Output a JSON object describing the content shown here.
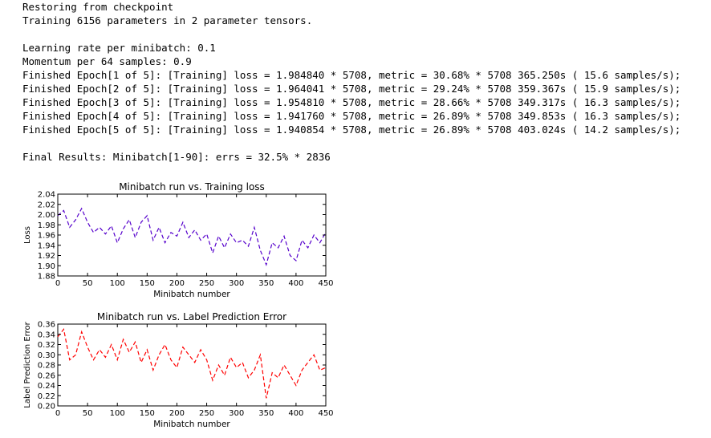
{
  "console": {
    "lines": [
      "Restoring from checkpoint",
      "Training 6156 parameters in 2 parameter tensors.",
      "",
      "Learning rate per minibatch: 0.1",
      "Momentum per 64 samples: 0.9",
      "Finished Epoch[1 of 5]: [Training] loss = 1.984840 * 5708, metric = 30.68% * 5708 365.250s ( 15.6 samples/s);",
      "Finished Epoch[2 of 5]: [Training] loss = 1.964041 * 5708, metric = 29.24% * 5708 359.367s ( 15.9 samples/s);",
      "Finished Epoch[3 of 5]: [Training] loss = 1.954810 * 5708, metric = 28.66% * 5708 349.317s ( 16.3 samples/s);",
      "Finished Epoch[4 of 5]: [Training] loss = 1.941760 * 5708, metric = 26.89% * 5708 349.853s ( 16.3 samples/s);",
      "Finished Epoch[5 of 5]: [Training] loss = 1.940854 * 5708, metric = 26.89% * 5708 403.024s ( 14.2 samples/s);",
      "",
      "Final Results: Minibatch[1-90]: errs = 32.5% * 2836"
    ]
  },
  "chart_data": [
    {
      "type": "line",
      "title": "Minibatch run vs. Training loss",
      "xlabel": "Minibatch number",
      "ylabel": "Loss",
      "xlim": [
        0,
        450
      ],
      "ylim": [
        1.88,
        2.04
      ],
      "xticks": [
        0,
        50,
        100,
        150,
        200,
        250,
        300,
        350,
        400,
        450
      ],
      "yticks": [
        1.88,
        1.9,
        1.92,
        1.94,
        1.96,
        1.98,
        2.0,
        2.02,
        2.04
      ],
      "ytick_labels": [
        "1.88",
        "1.90",
        "1.92",
        "1.94",
        "1.96",
        "1.98",
        "2.00",
        "2.02",
        "2.04"
      ],
      "color": "#5500cc",
      "line_style": "dashed",
      "grid": false,
      "series": [
        {
          "x": [
            0,
            10,
            20,
            30,
            40,
            50,
            60,
            70,
            80,
            90,
            100,
            110,
            120,
            130,
            140,
            150,
            160,
            170,
            180,
            190,
            200,
            210,
            220,
            230,
            240,
            250,
            260,
            270,
            280,
            290,
            300,
            310,
            320,
            330,
            340,
            350,
            360,
            370,
            380,
            390,
            400,
            410,
            420,
            430,
            440,
            450
          ],
          "values": [
            1.998,
            2.008,
            1.975,
            1.99,
            2.012,
            1.985,
            1.965,
            1.975,
            1.962,
            1.978,
            1.945,
            1.972,
            1.99,
            1.955,
            1.985,
            1.998,
            1.95,
            1.975,
            1.945,
            1.965,
            1.958,
            1.985,
            1.955,
            1.97,
            1.95,
            1.962,
            1.925,
            1.958,
            1.935,
            1.962,
            1.945,
            1.95,
            1.938,
            1.975,
            1.93,
            1.902,
            1.945,
            1.935,
            1.958,
            1.92,
            1.91,
            1.95,
            1.935,
            1.96,
            1.945,
            1.965
          ]
        }
      ]
    },
    {
      "type": "line",
      "title": "Minibatch run vs. Label Prediction Error",
      "xlabel": "Minibatch number",
      "ylabel": "Label Prediction Error",
      "xlim": [
        0,
        450
      ],
      "ylim": [
        0.2,
        0.36
      ],
      "xticks": [
        0,
        50,
        100,
        150,
        200,
        250,
        300,
        350,
        400,
        450
      ],
      "yticks": [
        0.2,
        0.22,
        0.24,
        0.26,
        0.28,
        0.3,
        0.32,
        0.34,
        0.36
      ],
      "ytick_labels": [
        "0.20",
        "0.22",
        "0.24",
        "0.26",
        "0.28",
        "0.30",
        "0.32",
        "0.34",
        "0.36"
      ],
      "color": "#ff0000",
      "line_style": "dashed",
      "grid": false,
      "series": [
        {
          "x": [
            0,
            10,
            20,
            30,
            40,
            50,
            60,
            70,
            80,
            90,
            100,
            110,
            120,
            130,
            140,
            150,
            160,
            170,
            180,
            190,
            200,
            210,
            220,
            230,
            240,
            250,
            260,
            270,
            280,
            290,
            300,
            310,
            320,
            330,
            340,
            350,
            360,
            370,
            380,
            390,
            400,
            410,
            420,
            430,
            440,
            450
          ],
          "values": [
            0.335,
            0.35,
            0.29,
            0.3,
            0.345,
            0.315,
            0.29,
            0.31,
            0.295,
            0.32,
            0.29,
            0.33,
            0.305,
            0.325,
            0.285,
            0.31,
            0.27,
            0.3,
            0.32,
            0.29,
            0.275,
            0.315,
            0.3,
            0.285,
            0.31,
            0.29,
            0.25,
            0.28,
            0.26,
            0.295,
            0.275,
            0.285,
            0.255,
            0.27,
            0.3,
            0.215,
            0.265,
            0.255,
            0.28,
            0.26,
            0.24,
            0.27,
            0.285,
            0.3,
            0.27,
            0.275
          ]
        }
      ]
    }
  ]
}
